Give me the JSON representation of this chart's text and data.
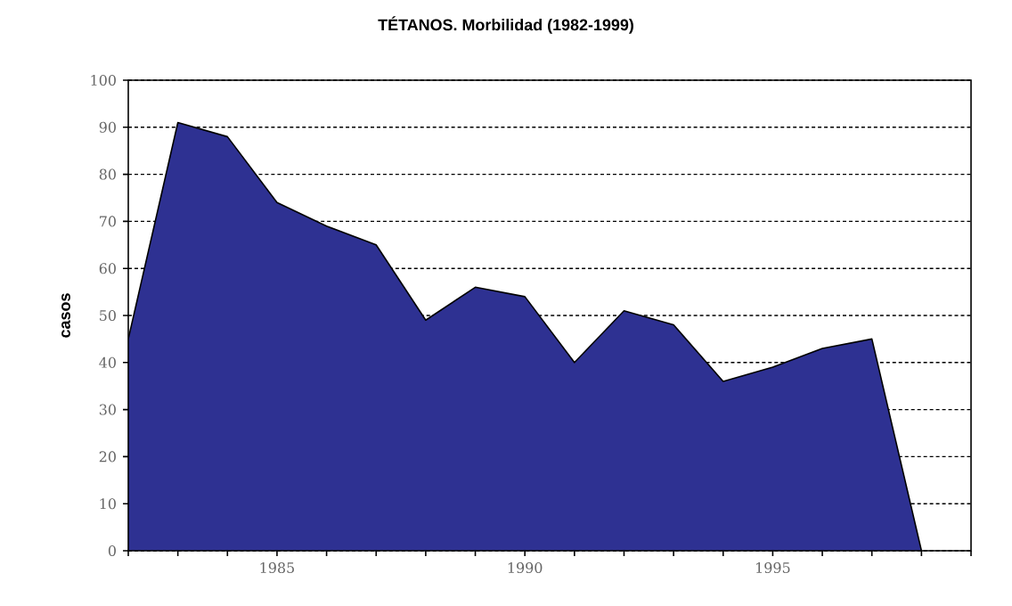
{
  "chart_data": {
    "type": "area",
    "title": "TÉTANOS. Morbilidad (1982-1999)",
    "ylabel": "casos",
    "x": [
      1982,
      1983,
      1984,
      1985,
      1986,
      1987,
      1988,
      1989,
      1990,
      1991,
      1992,
      1993,
      1994,
      1995,
      1996,
      1997,
      1998
    ],
    "values": [
      45,
      91,
      88,
      74,
      69,
      65,
      49,
      56,
      54,
      40,
      51,
      48,
      36,
      39,
      43,
      45,
      0
    ],
    "color": "#2e3192",
    "xlim": [
      1982,
      1999
    ],
    "xticks": [
      {
        "value": 1982,
        "label": null
      },
      {
        "value": 1983,
        "label": null
      },
      {
        "value": 1984,
        "label": null
      },
      1985,
      {
        "value": 1986,
        "label": null
      },
      {
        "value": 1987,
        "label": null
      },
      {
        "value": 1988,
        "label": null
      },
      {
        "value": 1989,
        "label": null
      },
      1990,
      {
        "value": 1991,
        "label": null
      },
      {
        "value": 1992,
        "label": null
      },
      {
        "value": 1993,
        "label": null
      },
      {
        "value": 1994,
        "label": null
      },
      1995,
      {
        "value": 1996,
        "label": null
      },
      {
        "value": 1997,
        "label": null
      },
      {
        "value": 1998,
        "label": null
      },
      {
        "value": 1999,
        "label": null
      }
    ],
    "ylim": [
      0,
      100
    ],
    "yticks": [
      0,
      10,
      20,
      30,
      40,
      50,
      60,
      70,
      80,
      90,
      100
    ],
    "grid": "y"
  }
}
